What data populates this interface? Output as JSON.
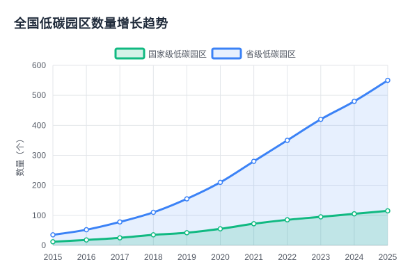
{
  "page": {
    "title": "全国低碳园区数量增长趋势"
  },
  "chart_data": {
    "type": "area",
    "title": "全国低碳园区数量增长趋势",
    "xlabel": "",
    "ylabel": "数量（个）",
    "ylim": [
      0,
      600
    ],
    "yticks": [
      0,
      100,
      200,
      300,
      400,
      500,
      600
    ],
    "grid": true,
    "legend_position": "top-center",
    "categories": [
      "2015",
      "2016",
      "2017",
      "2018",
      "2019",
      "2020",
      "2021",
      "2022",
      "2023",
      "2024",
      "2025"
    ],
    "series": [
      {
        "name": "国家级低碳园区",
        "color": "#10b981",
        "fill": "rgba(16,185,129,0.18)",
        "values": [
          12,
          18,
          25,
          35,
          42,
          55,
          72,
          85,
          95,
          105,
          115
        ]
      },
      {
        "name": "省级低碳园区",
        "color": "#3b82f6",
        "fill": "rgba(59,130,246,0.12)",
        "values": [
          35,
          52,
          78,
          110,
          155,
          210,
          280,
          350,
          420,
          480,
          550
        ]
      }
    ]
  }
}
